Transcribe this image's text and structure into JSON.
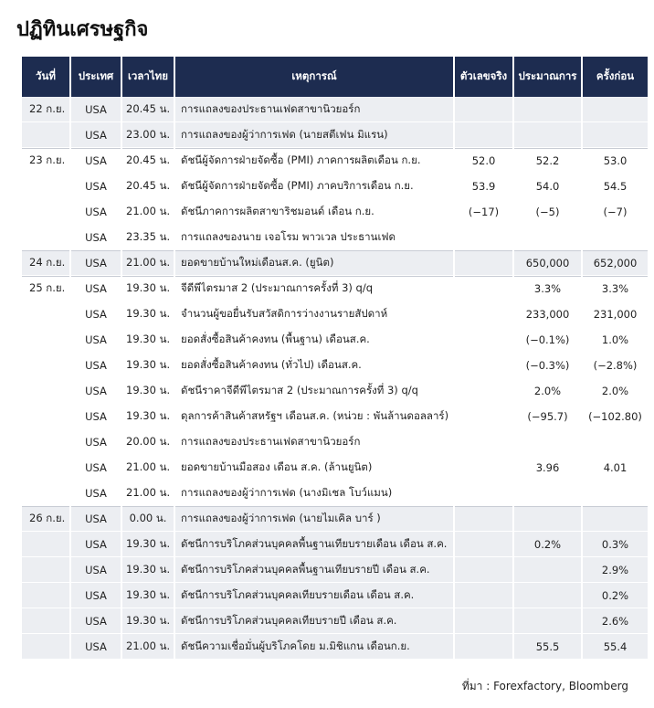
{
  "title": "ปฏิทินเศรษฐกิจ",
  "table": {
    "header": [
      "วันที่",
      "ประเทศ",
      "เวลาไทย",
      "เหตุการณ์",
      "ตัวเลขจริง",
      "ประมาณการ",
      "ครั้งก่อน"
    ],
    "rows": [
      [
        "22 ก.ย.",
        "USA",
        "20.45 น.",
        "การแถลงของประธานเฟดสาขานิวยอร์ก",
        null,
        null,
        null
      ],
      [
        null,
        "USA",
        "23.00 น.",
        "การแถลงของผู้ว่าการเฟด (นายสตีเฟน มิแรน)",
        null,
        null,
        null
      ],
      [
        "23 ก.ย.",
        "USA",
        "20.45 น.",
        "ดัชนีผู้จัดการฝ่ายจัดซื้อ (PMI) ภาคการผลิตเดือน ก.ย.",
        "52.0",
        "52.2",
        "53.0"
      ],
      [
        null,
        "USA",
        "20.45 น.",
        "ดัชนีผู้จัดการฝ่ายจัดซื้อ (PMI) ภาคบริการเดือน ก.ย.",
        "53.9",
        "54.0",
        "54.5"
      ],
      [
        null,
        "USA",
        "21.00 น.",
        "ดัชนีภาคการผลิตสาขาริชมอนด์ เดือน ก.ย.",
        "(−17)",
        "(−5)",
        "(−7)"
      ],
      [
        null,
        "USA",
        "23.35 น.",
        "การแถลงของนาย เจอโรม พาวเวล ประธานเฟด",
        null,
        null,
        null
      ],
      [
        "24 ก.ย.",
        "USA",
        "21.00 น.",
        "ยอดขายบ้านใหม่เดือนส.ค. (ยูนิต)",
        null,
        "650,000",
        "652,000"
      ],
      [
        "25 ก.ย.",
        "USA",
        "19.30 น.",
        "จีดีพีไตรมาส 2 (ประมาณการครั้งที่ 3) q/q",
        null,
        "3.3%",
        "3.3%"
      ],
      [
        null,
        "USA",
        "19.30 น.",
        "จำนวนผู้ขอยื่นรับสวัสดิการว่างงานรายสัปดาห์",
        null,
        "233,000",
        "231,000"
      ],
      [
        null,
        "USA",
        "19.30 น.",
        "ยอดสั่งซื้อสินค้าคงทน (พื้นฐาน) เดือนส.ค.",
        null,
        "(−0.1%)",
        "1.0%"
      ],
      [
        null,
        "USA",
        "19.30 น.",
        "ยอดสั่งซื้อสินค้าคงทน (ทั่วไป) เดือนส.ค.",
        null,
        "(−0.3%)",
        "(−2.8%)"
      ],
      [
        null,
        "USA",
        "19.30 น.",
        "ดัชนีราคาจีดีพีไตรมาส 2 (ประมาณการครั้งที่ 3) q/q",
        null,
        "2.0%",
        "2.0%"
      ],
      [
        null,
        "USA",
        "19.30 น.",
        "ดุลการค้าสินค้าสหรัฐฯ เดือนส.ค. (หน่วย : พันล้านดอลลาร์)",
        null,
        "(−95.7)",
        "(−102.80)"
      ],
      [
        null,
        "USA",
        "20.00 น.",
        "การแถลงของประธานเฟดสาขานิวยอร์ก",
        null,
        null,
        null
      ],
      [
        null,
        "USA",
        "21.00 น.",
        "ยอดขายบ้านมือสอง เดือน ส.ค. (ล้านยูนิต)",
        null,
        "3.96",
        "4.01"
      ],
      [
        null,
        "USA",
        "21.00 น.",
        "การแถลงของผู้ว่าการเฟด (นางมิเชล โบว์แมน)",
        null,
        null,
        null
      ],
      [
        "26 ก.ย.",
        "USA",
        "0.00 น.",
        "การแถลงของผู้ว่าการเฟด (นายไมเคิล บาร์ )",
        null,
        null,
        null
      ],
      [
        null,
        "USA",
        "19.30 น.",
        "ดัชนีการบริโภคส่วนบุคคลพื้นฐานเทียบรายเดือน เดือน ส.ค.",
        null,
        "0.2%",
        "0.3%"
      ],
      [
        null,
        "USA",
        "19.30 น.",
        "ดัชนีการบริโภคส่วนบุคคลพื้นฐานเทียบรายปี เดือน ส.ค.",
        null,
        null,
        "2.9%"
      ],
      [
        null,
        "USA",
        "19.30 น.",
        "ดัชนีการบริโภคส่วนบุคคลเทียบรายเดือน เดือน ส.ค.",
        null,
        null,
        "0.2%"
      ],
      [
        null,
        "USA",
        "19.30 น.",
        "ดัชนีการบริโภคส่วนบุคคลเทียบรายปี เดือน ส.ค.",
        null,
        null,
        "2.6%"
      ],
      [
        null,
        "USA",
        "21.00 น.",
        "ดัชนีความเชื่อมั่นผู้บริโภคโดย ม.มิชิแกน เดือนก.ย.",
        null,
        "55.5",
        "55.4"
      ]
    ]
  },
  "source": "ที่มา : Forexfactory, Bloomberg"
}
